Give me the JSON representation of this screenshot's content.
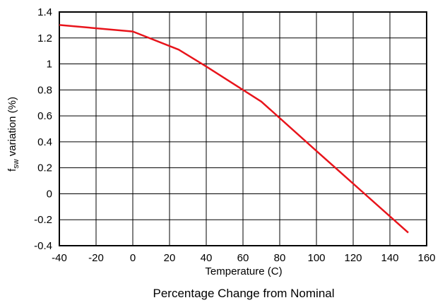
{
  "chart_data": {
    "type": "line",
    "xlabel": "Temperature (C)",
    "ylabel": {
      "prefix": "f",
      "subscript": "sw",
      "suffix": " variation (%)"
    },
    "caption": "Percentage Change from Nominal",
    "xlim": [
      -40,
      160
    ],
    "ylim": [
      -0.4,
      1.4
    ],
    "x_ticks": [
      -40,
      -20,
      0,
      20,
      40,
      60,
      80,
      100,
      120,
      140,
      160
    ],
    "y_ticks": [
      -0.4,
      -0.2,
      0,
      0.2,
      0.4,
      0.6,
      0.8,
      1,
      1.2,
      1.4
    ],
    "x_tick_labels": [
      "-40",
      "-20",
      "0",
      "20",
      "40",
      "60",
      "80",
      "100",
      "120",
      "140",
      "160"
    ],
    "y_tick_labels": [
      "-0.4",
      "-0.2",
      "0",
      "0.2",
      "0.4",
      "0.6",
      "0.8",
      "1",
      "1.2",
      "1.4"
    ],
    "grid": true,
    "series": [
      {
        "color": "#e8141b",
        "x": [
          -40,
          0,
          25,
          40,
          70,
          100,
          150
        ],
        "y": [
          1.3,
          1.25,
          1.11,
          0.98,
          0.71,
          0.33,
          -0.3
        ]
      }
    ]
  }
}
